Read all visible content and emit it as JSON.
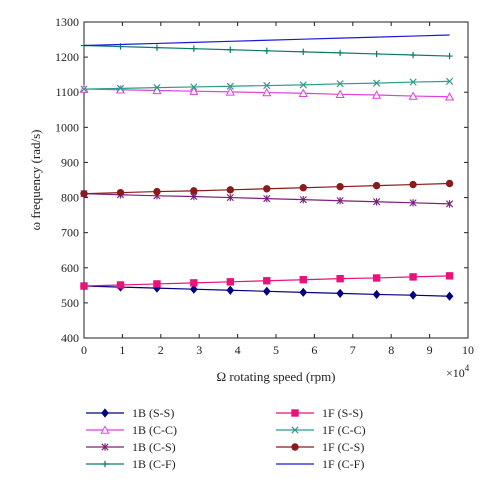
{
  "chart_data": {
    "type": "line",
    "xlabel": "Ω rotating speed (rpm)",
    "ylabel": "ω frequency (rad/s)",
    "x_multiplier_label": "×10",
    "x_multiplier_exp": "4",
    "xlim": [
      0,
      10
    ],
    "ylim": [
      400,
      1300
    ],
    "x_ticks": [
      "0",
      "1",
      "2",
      "3",
      "4",
      "5",
      "6",
      "7",
      "8",
      "9",
      "10"
    ],
    "y_ticks": [
      "400",
      "500",
      "600",
      "700",
      "800",
      "900",
      "1000",
      "1100",
      "1200",
      "1300"
    ],
    "grid": false,
    "legend_placement": "below",
    "x": [
      0,
      0.95,
      1.9,
      2.86,
      3.81,
      4.76,
      5.71,
      6.67,
      7.62,
      8.57,
      9.52
    ],
    "series": [
      {
        "name": "1B (S-S)",
        "color": "#000080",
        "marker": "diamond",
        "values": [
          548,
          545,
          542,
          539,
          536,
          533,
          530,
          527,
          524,
          522,
          519
        ]
      },
      {
        "name": "1F (S-S)",
        "color": "#e8127a",
        "marker": "square",
        "values": [
          548,
          551,
          554,
          557,
          560,
          563,
          566,
          569,
          571,
          574,
          577
        ]
      },
      {
        "name": "1B (C-C)",
        "color": "#e040e0",
        "marker": "triangle",
        "values": [
          1109,
          1107,
          1105,
          1103,
          1101,
          1099,
          1097,
          1094,
          1092,
          1089,
          1087
        ]
      },
      {
        "name": "1F (C-C)",
        "color": "#2e9c8a",
        "marker": "x",
        "values": [
          1109,
          1111,
          1113,
          1115,
          1117,
          1119,
          1121,
          1124,
          1126,
          1129,
          1131
        ]
      },
      {
        "name": "1B (C-S)",
        "color": "#7b1f7b",
        "marker": "star",
        "values": [
          811,
          808,
          805,
          803,
          800,
          797,
          794,
          791,
          788,
          785,
          782
        ]
      },
      {
        "name": "1F (C-S)",
        "color": "#8b1a1a",
        "marker": "circle",
        "values": [
          811,
          814,
          817,
          819,
          822,
          825,
          828,
          831,
          834,
          837,
          840
        ]
      },
      {
        "name": "1B (C-F)",
        "color": "#0b7a6a",
        "marker": "plus",
        "values": [
          1233,
          1230,
          1227,
          1224,
          1221,
          1218,
          1215,
          1212,
          1209,
          1206,
          1203
        ]
      },
      {
        "name": "1F (C-F)",
        "color": "#1a1ad8",
        "marker": "none",
        "values": [
          1233,
          1236,
          1239,
          1242,
          1245,
          1248,
          1251,
          1254,
          1257,
          1260,
          1263
        ]
      }
    ]
  }
}
